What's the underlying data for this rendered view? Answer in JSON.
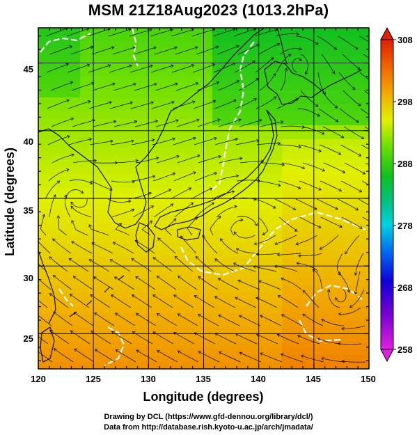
{
  "title": "MSM 21Z18Aug2023 (1013.2hPa)",
  "axes": {
    "xlabel": "Longitude (degrees)",
    "ylabel": "Latitude  (degrees)",
    "xticks": [
      "120",
      "125",
      "130",
      "135",
      "140",
      "145",
      "150"
    ],
    "yticks": [
      "45",
      "40",
      "35",
      "30",
      "25"
    ]
  },
  "colorbar": {
    "ticks": [
      "308",
      "298",
      "288",
      "278",
      "268",
      "258"
    ],
    "min": 258,
    "max": 308
  },
  "credits": {
    "line1": "Drawing by DCL (https://www.gfd-dennou.org/library/dcl/)",
    "line2": "Data from http://database.rish.kyoto-u.ac.jp/arch/jmadata/"
  },
  "chart_data": {
    "type": "heatmap",
    "title": "MSM 21Z18Aug2023 (1013.2hPa)",
    "xlabel": "Longitude (degrees)",
    "ylabel": "Latitude  (degrees)",
    "xlim": [
      120,
      150
    ],
    "ylim": [
      22.4,
      47.6
    ],
    "grid": true,
    "colorbar_range": [
      258,
      308
    ],
    "cyclone_centers": [
      {
        "lon": 147.5,
        "lat": 27.5
      },
      {
        "lon": 123.2,
        "lat": 35.2
      },
      {
        "lon": 138.5,
        "lat": 32.8
      },
      {
        "lon": 143.5,
        "lat": 45.2
      }
    ]
  }
}
